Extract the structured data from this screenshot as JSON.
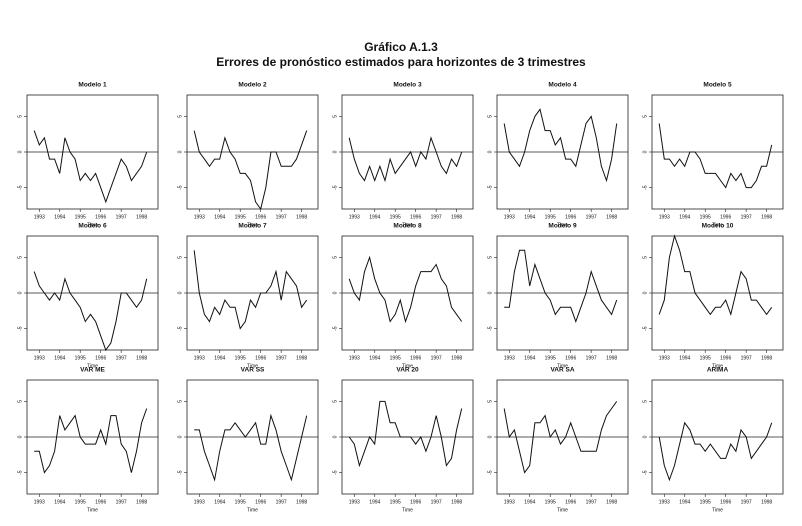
{
  "header": {
    "title": "Gráfico A.1.3",
    "subtitle": "Errores de pronóstico estimados para horizontes de 3 trimestres"
  },
  "chart_data": [
    {
      "type": "line",
      "title": "Modelo 1",
      "xlabel": "Time",
      "x": [
        1992.75,
        1993,
        1993.25,
        1993.5,
        1993.75,
        1994,
        1994.25,
        1994.5,
        1994.75,
        1995,
        1995.25,
        1995.5,
        1995.75,
        1996,
        1996.25,
        1996.5,
        1996.75,
        1997,
        1997.25,
        1997.5,
        1997.75,
        1998,
        1998.25
      ],
      "values": [
        3,
        1,
        2,
        -1,
        -1,
        -3,
        2,
        0,
        -1,
        -4,
        -3,
        -4,
        -3,
        -5,
        -7,
        -5,
        -3,
        -1,
        -2,
        -4,
        -3,
        -2,
        0
      ],
      "color": "#111111",
      "xlim": [
        1992.4,
        1998.8
      ],
      "ylim": [
        -8,
        8
      ],
      "xticks": [
        1993,
        1994,
        1995,
        1996,
        1997,
        1998
      ],
      "yticks": [
        -5,
        0,
        5
      ],
      "zero_line": true
    },
    {
      "type": "line",
      "title": "Modelo 2",
      "xlabel": "Time",
      "x": [
        1992.75,
        1993,
        1993.25,
        1993.5,
        1993.75,
        1994,
        1994.25,
        1994.5,
        1994.75,
        1995,
        1995.25,
        1995.5,
        1995.75,
        1996,
        1996.25,
        1996.5,
        1996.75,
        1997,
        1997.25,
        1997.5,
        1997.75,
        1998,
        1998.25
      ],
      "values": [
        3,
        0,
        -1,
        -2,
        -1,
        -1,
        2,
        0,
        -1,
        -3,
        -3,
        -4,
        -7,
        -8,
        -5,
        0,
        0,
        -2,
        -2,
        -2,
        -1,
        1,
        3
      ],
      "color": "#111111",
      "xlim": [
        1992.4,
        1998.8
      ],
      "ylim": [
        -8,
        8
      ],
      "xticks": [
        1993,
        1994,
        1995,
        1996,
        1997,
        1998
      ],
      "yticks": [
        -5,
        0,
        5
      ],
      "zero_line": true
    },
    {
      "type": "line",
      "title": "Modelo 3",
      "xlabel": "Time",
      "x": [
        1992.75,
        1993,
        1993.25,
        1993.5,
        1993.75,
        1994,
        1994.25,
        1994.5,
        1994.75,
        1995,
        1995.25,
        1995.5,
        1995.75,
        1996,
        1996.25,
        1996.5,
        1996.75,
        1997,
        1997.25,
        1997.5,
        1997.75,
        1998,
        1998.25
      ],
      "values": [
        2,
        -1,
        -3,
        -4,
        -2,
        -4,
        -2,
        -4,
        -1,
        -3,
        -2,
        -1,
        0,
        -2,
        0,
        -1,
        2,
        0,
        -2,
        -3,
        -1,
        -2,
        0
      ],
      "color": "#111111",
      "xlim": [
        1992.4,
        1998.8
      ],
      "ylim": [
        -8,
        8
      ],
      "xticks": [
        1993,
        1994,
        1995,
        1996,
        1997,
        1998
      ],
      "yticks": [
        -5,
        0,
        5
      ],
      "zero_line": true
    },
    {
      "type": "line",
      "title": "Modelo 4",
      "xlabel": "Time",
      "x": [
        1992.75,
        1993,
        1993.25,
        1993.5,
        1993.75,
        1994,
        1994.25,
        1994.5,
        1994.75,
        1995,
        1995.25,
        1995.5,
        1995.75,
        1996,
        1996.25,
        1996.5,
        1996.75,
        1997,
        1997.25,
        1997.5,
        1997.75,
        1998,
        1998.25
      ],
      "values": [
        4,
        0,
        -1,
        -2,
        0,
        3,
        5,
        6,
        3,
        3,
        1,
        2,
        -1,
        -1,
        -2,
        1,
        4,
        5,
        2,
        -2,
        -4,
        -1,
        4
      ],
      "color": "#111111",
      "xlim": [
        1992.4,
        1998.8
      ],
      "ylim": [
        -8,
        8
      ],
      "xticks": [
        1993,
        1994,
        1995,
        1996,
        1997,
        1998
      ],
      "yticks": [
        -5,
        0,
        5
      ],
      "zero_line": true
    },
    {
      "type": "line",
      "title": "Modelo 5",
      "xlabel": "Time",
      "x": [
        1992.75,
        1993,
        1993.25,
        1993.5,
        1993.75,
        1994,
        1994.25,
        1994.5,
        1994.75,
        1995,
        1995.25,
        1995.5,
        1995.75,
        1996,
        1996.25,
        1996.5,
        1996.75,
        1997,
        1997.25,
        1997.5,
        1997.75,
        1998,
        1998.25
      ],
      "values": [
        4,
        -1,
        -1,
        -2,
        -1,
        -2,
        0,
        0,
        -1,
        -3,
        -3,
        -3,
        -4,
        -5,
        -3,
        -4,
        -3,
        -5,
        -5,
        -4,
        -2,
        -2,
        1
      ],
      "color": "#111111",
      "xlim": [
        1992.4,
        1998.8
      ],
      "ylim": [
        -8,
        8
      ],
      "xticks": [
        1993,
        1994,
        1995,
        1996,
        1997,
        1998
      ],
      "yticks": [
        -5,
        0,
        5
      ],
      "zero_line": true
    },
    {
      "type": "line",
      "title": "Modelo 6",
      "xlabel": "Time",
      "x": [
        1992.75,
        1993,
        1993.25,
        1993.5,
        1993.75,
        1994,
        1994.25,
        1994.5,
        1994.75,
        1995,
        1995.25,
        1995.5,
        1995.75,
        1996,
        1996.25,
        1996.5,
        1996.75,
        1997,
        1997.25,
        1997.5,
        1997.75,
        1998,
        1998.25
      ],
      "values": [
        3,
        1,
        0,
        -1,
        0,
        -1,
        2,
        0,
        -1,
        -2,
        -4,
        -3,
        -4,
        -6,
        -8,
        -7,
        -4,
        0,
        0,
        -1,
        -2,
        -1,
        2
      ],
      "color": "#111111",
      "xlim": [
        1992.4,
        1998.8
      ],
      "ylim": [
        -8,
        8
      ],
      "xticks": [
        1993,
        1994,
        1995,
        1996,
        1997,
        1998
      ],
      "yticks": [
        -5,
        0,
        5
      ],
      "zero_line": true
    },
    {
      "type": "line",
      "title": "Modelo 7",
      "xlabel": "Time",
      "x": [
        1992.75,
        1993,
        1993.25,
        1993.5,
        1993.75,
        1994,
        1994.25,
        1994.5,
        1994.75,
        1995,
        1995.25,
        1995.5,
        1995.75,
        1996,
        1996.25,
        1996.5,
        1996.75,
        1997,
        1997.25,
        1997.5,
        1997.75,
        1998,
        1998.25
      ],
      "values": [
        6,
        0,
        -3,
        -4,
        -2,
        -3,
        -1,
        -2,
        -2,
        -5,
        -4,
        -1,
        -2,
        0,
        0,
        1,
        3,
        -1,
        3,
        2,
        1,
        -2,
        -1
      ],
      "color": "#111111",
      "xlim": [
        1992.4,
        1998.8
      ],
      "ylim": [
        -8,
        8
      ],
      "xticks": [
        1993,
        1994,
        1995,
        1996,
        1997,
        1998
      ],
      "yticks": [
        -5,
        0,
        5
      ],
      "zero_line": true
    },
    {
      "type": "line",
      "title": "Modelo 8",
      "xlabel": "Time",
      "x": [
        1992.75,
        1993,
        1993.25,
        1993.5,
        1993.75,
        1994,
        1994.25,
        1994.5,
        1994.75,
        1995,
        1995.25,
        1995.5,
        1995.75,
        1996,
        1996.25,
        1996.5,
        1996.75,
        1997,
        1997.25,
        1997.5,
        1997.75,
        1998,
        1998.25
      ],
      "values": [
        2,
        0,
        -1,
        3,
        5,
        2,
        0,
        -1,
        -4,
        -3,
        -1,
        -4,
        -2,
        1,
        3,
        3,
        3,
        4,
        2,
        1,
        -2,
        -3,
        -4
      ],
      "color": "#111111",
      "xlim": [
        1992.4,
        1998.8
      ],
      "ylim": [
        -8,
        8
      ],
      "xticks": [
        1993,
        1994,
        1995,
        1996,
        1997,
        1998
      ],
      "yticks": [
        -5,
        0,
        5
      ],
      "zero_line": true
    },
    {
      "type": "line",
      "title": "Modelo 9",
      "xlabel": "Time",
      "x": [
        1992.75,
        1993,
        1993.25,
        1993.5,
        1993.75,
        1994,
        1994.25,
        1994.5,
        1994.75,
        1995,
        1995.25,
        1995.5,
        1995.75,
        1996,
        1996.25,
        1996.5,
        1996.75,
        1997,
        1997.25,
        1997.5,
        1997.75,
        1998,
        1998.25
      ],
      "values": [
        -2,
        -2,
        3,
        6,
        6,
        1,
        4,
        2,
        0,
        -1,
        -3,
        -2,
        -2,
        -2,
        -4,
        -2,
        0,
        3,
        1,
        -1,
        -2,
        -3,
        -1
      ],
      "color": "#111111",
      "xlim": [
        1992.4,
        1998.8
      ],
      "ylim": [
        -8,
        8
      ],
      "xticks": [
        1993,
        1994,
        1995,
        1996,
        1997,
        1998
      ],
      "yticks": [
        -5,
        0,
        5
      ],
      "zero_line": true
    },
    {
      "type": "line",
      "title": "Modelo 10",
      "xlabel": "Time",
      "x": [
        1992.75,
        1993,
        1993.25,
        1993.5,
        1993.75,
        1994,
        1994.25,
        1994.5,
        1994.75,
        1995,
        1995.25,
        1995.5,
        1995.75,
        1996,
        1996.25,
        1996.5,
        1996.75,
        1997,
        1997.25,
        1997.5,
        1997.75,
        1998,
        1998.25
      ],
      "values": [
        -3,
        -1,
        5,
        8,
        6,
        3,
        3,
        0,
        -1,
        -2,
        -3,
        -2,
        -2,
        -1,
        -3,
        0,
        3,
        2,
        -1,
        -1,
        -2,
        -3,
        -2
      ],
      "color": "#111111",
      "xlim": [
        1992.4,
        1998.8
      ],
      "ylim": [
        -8,
        8
      ],
      "xticks": [
        1993,
        1994,
        1995,
        1996,
        1997,
        1998
      ],
      "yticks": [
        -5,
        0,
        5
      ],
      "zero_line": true
    },
    {
      "type": "line",
      "title": "VAR ME",
      "xlabel": "Time",
      "x": [
        1992.75,
        1993,
        1993.25,
        1993.5,
        1993.75,
        1994,
        1994.25,
        1994.5,
        1994.75,
        1995,
        1995.25,
        1995.5,
        1995.75,
        1996,
        1996.25,
        1996.5,
        1996.75,
        1997,
        1997.25,
        1997.5,
        1997.75,
        1998,
        1998.25
      ],
      "values": [
        -2,
        -2,
        -5,
        -4,
        -2,
        3,
        1,
        2,
        3,
        0,
        -1,
        -1,
        -1,
        1,
        -1,
        3,
        3,
        -1,
        -2,
        -5,
        -2,
        2,
        4
      ],
      "color": "#111111",
      "xlim": [
        1992.4,
        1998.8
      ],
      "ylim": [
        -8,
        8
      ],
      "xticks": [
        1993,
        1994,
        1995,
        1996,
        1997,
        1998
      ],
      "yticks": [
        -5,
        0,
        5
      ],
      "zero_line": true
    },
    {
      "type": "line",
      "title": "VAR SS",
      "xlabel": "Time",
      "x": [
        1992.75,
        1993,
        1993.25,
        1993.5,
        1993.75,
        1994,
        1994.25,
        1994.5,
        1994.75,
        1995,
        1995.25,
        1995.5,
        1995.75,
        1996,
        1996.25,
        1996.5,
        1996.75,
        1997,
        1997.25,
        1997.5,
        1997.75,
        1998,
        1998.25
      ],
      "values": [
        1,
        1,
        -2,
        -4,
        -6,
        -2,
        1,
        1,
        2,
        1,
        0,
        1,
        2,
        -1,
        -1,
        3,
        1,
        -2,
        -4,
        -6,
        -3,
        0,
        3
      ],
      "color": "#111111",
      "xlim": [
        1992.4,
        1998.8
      ],
      "ylim": [
        -8,
        8
      ],
      "xticks": [
        1993,
        1994,
        1995,
        1996,
        1997,
        1998
      ],
      "yticks": [
        -5,
        0,
        5
      ],
      "zero_line": true
    },
    {
      "type": "line",
      "title": "VAR 20",
      "xlabel": "Time",
      "x": [
        1992.75,
        1993,
        1993.25,
        1993.5,
        1993.75,
        1994,
        1994.25,
        1994.5,
        1994.75,
        1995,
        1995.25,
        1995.5,
        1995.75,
        1996,
        1996.25,
        1996.5,
        1996.75,
        1997,
        1997.25,
        1997.5,
        1997.75,
        1998,
        1998.25
      ],
      "values": [
        0,
        -1,
        -4,
        -2,
        0,
        -1,
        5,
        5,
        2,
        2,
        0,
        0,
        0,
        -1,
        0,
        -2,
        0,
        3,
        0,
        -4,
        -3,
        1,
        4
      ],
      "color": "#111111",
      "xlim": [
        1992.4,
        1998.8
      ],
      "ylim": [
        -8,
        8
      ],
      "xticks": [
        1993,
        1994,
        1995,
        1996,
        1997,
        1998
      ],
      "yticks": [
        -5,
        0,
        5
      ],
      "zero_line": true
    },
    {
      "type": "line",
      "title": "VAR SA",
      "xlabel": "Time",
      "x": [
        1992.75,
        1993,
        1993.25,
        1993.5,
        1993.75,
        1994,
        1994.25,
        1994.5,
        1994.75,
        1995,
        1995.25,
        1995.5,
        1995.75,
        1996,
        1996.25,
        1996.5,
        1996.75,
        1997,
        1997.25,
        1997.5,
        1997.75,
        1998,
        1998.25
      ],
      "values": [
        4,
        0,
        1,
        -2,
        -5,
        -4,
        2,
        2,
        3,
        0,
        1,
        -1,
        0,
        2,
        0,
        -2,
        -2,
        -2,
        -2,
        1,
        3,
        4,
        5
      ],
      "color": "#111111",
      "xlim": [
        1992.4,
        1998.8
      ],
      "ylim": [
        -8,
        8
      ],
      "xticks": [
        1993,
        1994,
        1995,
        1996,
        1997,
        1998
      ],
      "yticks": [
        -5,
        0,
        5
      ],
      "zero_line": true
    },
    {
      "type": "line",
      "title": "ARIMA",
      "xlabel": "Time",
      "x": [
        1992.75,
        1993,
        1993.25,
        1993.5,
        1993.75,
        1994,
        1994.25,
        1994.5,
        1994.75,
        1995,
        1995.25,
        1995.5,
        1995.75,
        1996,
        1996.25,
        1996.5,
        1996.75,
        1997,
        1997.25,
        1997.5,
        1997.75,
        1998,
        1998.25
      ],
      "values": [
        0,
        -4,
        -6,
        -4,
        -1,
        2,
        1,
        -1,
        -1,
        -2,
        -1,
        -2,
        -3,
        -3,
        -1,
        -2,
        1,
        0,
        -3,
        -2,
        -1,
        0,
        2
      ],
      "color": "#111111",
      "xlim": [
        1992.4,
        1998.8
      ],
      "ylim": [
        -8,
        8
      ],
      "xticks": [
        1993,
        1994,
        1995,
        1996,
        1997,
        1998
      ],
      "yticks": [
        -5,
        0,
        5
      ],
      "zero_line": true
    }
  ]
}
